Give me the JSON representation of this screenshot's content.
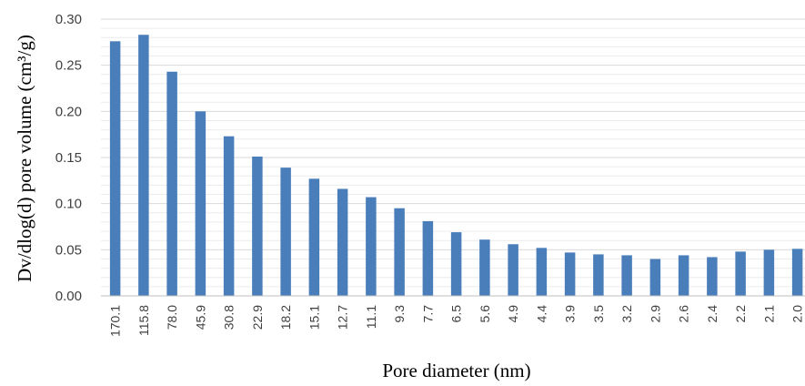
{
  "chart_data": {
    "type": "bar",
    "title": "",
    "xlabel": "Pore diameter (nm)",
    "ylabel": "Dv/dlog(d) pore volume (cm³/g)",
    "ylim": [
      0,
      0.3
    ],
    "yticks": [
      "0.00",
      "0.05",
      "0.10",
      "0.15",
      "0.20",
      "0.25",
      "0.30"
    ],
    "categories": [
      "170.1",
      "115.8",
      "78.0",
      "45.9",
      "30.8",
      "22.9",
      "18.2",
      "15.1",
      "12.7",
      "11.1",
      "9.3",
      "7.7",
      "6.5",
      "5.6",
      "4.9",
      "4.4",
      "3.9",
      "3.5",
      "3.2",
      "2.9",
      "2.6",
      "2.4",
      "2.2",
      "2.1",
      "2.0"
    ],
    "values": [
      0.276,
      0.283,
      0.243,
      0.2,
      0.173,
      0.151,
      0.139,
      0.127,
      0.116,
      0.107,
      0.095,
      0.081,
      0.069,
      0.061,
      0.056,
      0.052,
      0.047,
      0.045,
      0.044,
      0.04,
      0.044,
      0.042,
      0.048,
      0.05,
      0.051
    ],
    "bar_color": "#4A7EBB",
    "minor_grid": true,
    "legend": "none"
  }
}
